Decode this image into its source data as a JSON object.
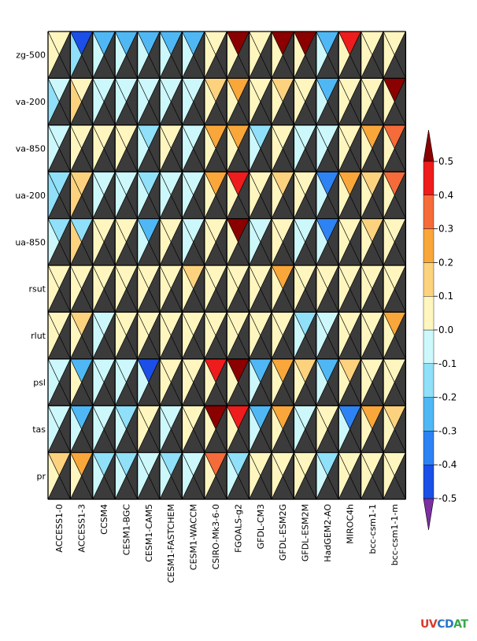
{
  "chart_data": {
    "type": "heatmap",
    "title": "",
    "xlabel": "",
    "ylabel": "",
    "rows": [
      "zg-500",
      "va-200",
      "va-850",
      "ua-200",
      "ua-850",
      "rsut",
      "rlut",
      "psl",
      "tas",
      "pr"
    ],
    "columns": [
      "ACCESS1-0",
      "ACCESS1-3",
      "CCSM4",
      "CESM1-BGC",
      "CESM1-CAM5",
      "CESM1-FASTCHEM",
      "CESM1-WACCM",
      "CSIRO-Mk3-6-0",
      "FGOALS-g2",
      "GFDL-CM3",
      "GFDL-ESM2G",
      "GFDL-ESM2M",
      "HadGEM2-AO",
      "MIROC4h",
      "bcc-csm1-1",
      "bcc-csm1-1-m"
    ],
    "triangle_order": [
      "top",
      "right",
      "bottom",
      "left"
    ],
    "missing_color": "#3b3b3b",
    "values": [
      [
        [
          0.05,
          null,
          null,
          0.05
        ],
        [
          -0.45,
          null,
          null,
          -0.15
        ],
        [
          -0.25,
          null,
          null,
          -0.05
        ],
        [
          -0.25,
          null,
          null,
          -0.05
        ],
        [
          -0.25,
          null,
          null,
          -0.05
        ],
        [
          -0.25,
          null,
          null,
          -0.05
        ],
        [
          -0.25,
          null,
          null,
          -0.05
        ],
        [
          0.05,
          null,
          null,
          0.05
        ],
        [
          0.6,
          null,
          null,
          0.05
        ],
        [
          0.05,
          null,
          null,
          0.05
        ],
        [
          0.6,
          null,
          null,
          0.05
        ],
        [
          0.6,
          null,
          null,
          0.05
        ],
        [
          -0.25,
          null,
          null,
          -0.05
        ],
        [
          0.45,
          null,
          null,
          0.05
        ],
        [
          0.05,
          null,
          null,
          0.05
        ],
        [
          0.05,
          null,
          null,
          0.05
        ]
      ],
      [
        [
          -0.05,
          null,
          null,
          -0.15
        ],
        [
          0.05,
          null,
          null,
          0.15
        ],
        [
          -0.05,
          null,
          null,
          -0.05
        ],
        [
          -0.05,
          null,
          null,
          -0.05
        ],
        [
          -0.05,
          null,
          null,
          -0.05
        ],
        [
          -0.05,
          null,
          null,
          -0.05
        ],
        [
          -0.05,
          null,
          null,
          -0.05
        ],
        [
          0.15,
          null,
          null,
          0.05
        ],
        [
          0.25,
          null,
          null,
          0.05
        ],
        [
          0.05,
          null,
          null,
          0.05
        ],
        [
          0.15,
          null,
          null,
          0.05
        ],
        [
          0.05,
          null,
          null,
          0.05
        ],
        [
          -0.25,
          null,
          null,
          -0.05
        ],
        [
          0.05,
          null,
          null,
          0.05
        ],
        [
          0.05,
          null,
          null,
          0.05
        ],
        [
          0.6,
          null,
          null,
          0.05
        ]
      ],
      [
        [
          -0.05,
          null,
          null,
          -0.05
        ],
        [
          0.05,
          null,
          null,
          0.05
        ],
        [
          0.05,
          null,
          null,
          0.05
        ],
        [
          0.05,
          null,
          null,
          0.05
        ],
        [
          -0.15,
          null,
          null,
          -0.05
        ],
        [
          0.05,
          null,
          null,
          0.05
        ],
        [
          -0.05,
          null,
          null,
          -0.05
        ],
        [
          0.25,
          null,
          null,
          0.05
        ],
        [
          0.25,
          null,
          null,
          0.05
        ],
        [
          -0.15,
          null,
          null,
          -0.05
        ],
        [
          0.05,
          null,
          null,
          0.05
        ],
        [
          -0.05,
          null,
          null,
          -0.05
        ],
        [
          -0.05,
          null,
          null,
          -0.05
        ],
        [
          0.05,
          null,
          null,
          0.05
        ],
        [
          0.25,
          null,
          null,
          0.05
        ],
        [
          0.35,
          null,
          null,
          0.05
        ]
      ],
      [
        [
          -0.15,
          null,
          null,
          -0.15
        ],
        [
          0.15,
          null,
          null,
          0.15
        ],
        [
          -0.05,
          null,
          null,
          -0.05
        ],
        [
          -0.05,
          null,
          null,
          -0.05
        ],
        [
          -0.15,
          null,
          null,
          -0.05
        ],
        [
          -0.05,
          null,
          null,
          -0.05
        ],
        [
          -0.05,
          null,
          null,
          -0.05
        ],
        [
          0.25,
          null,
          null,
          0.05
        ],
        [
          0.45,
          null,
          null,
          0.05
        ],
        [
          0.05,
          null,
          null,
          0.05
        ],
        [
          0.15,
          null,
          null,
          0.05
        ],
        [
          0.05,
          null,
          null,
          0.05
        ],
        [
          -0.35,
          null,
          null,
          -0.05
        ],
        [
          0.25,
          null,
          null,
          0.05
        ],
        [
          0.15,
          null,
          null,
          0.05
        ],
        [
          0.35,
          null,
          null,
          0.05
        ]
      ],
      [
        [
          -0.15,
          null,
          null,
          -0.05
        ],
        [
          -0.15,
          null,
          null,
          0.15
        ],
        [
          0.05,
          null,
          null,
          0.05
        ],
        [
          0.05,
          null,
          null,
          0.05
        ],
        [
          -0.25,
          null,
          null,
          -0.05
        ],
        [
          0.05,
          null,
          null,
          0.05
        ],
        [
          -0.05,
          null,
          null,
          -0.05
        ],
        [
          0.05,
          null,
          null,
          0.05
        ],
        [
          0.6,
          null,
          null,
          0.05
        ],
        [
          -0.05,
          null,
          null,
          -0.05
        ],
        [
          0.05,
          null,
          null,
          0.05
        ],
        [
          -0.05,
          null,
          null,
          -0.05
        ],
        [
          -0.35,
          null,
          null,
          -0.05
        ],
        [
          0.05,
          null,
          null,
          0.05
        ],
        [
          0.15,
          null,
          null,
          0.05
        ],
        [
          0.05,
          null,
          null,
          0.05
        ]
      ],
      [
        [
          0.05,
          null,
          null,
          0.05
        ],
        [
          0.05,
          null,
          null,
          0.05
        ],
        [
          0.05,
          null,
          null,
          0.05
        ],
        [
          0.05,
          null,
          null,
          0.05
        ],
        [
          0.05,
          null,
          null,
          0.05
        ],
        [
          0.05,
          null,
          null,
          0.05
        ],
        [
          0.15,
          null,
          null,
          0.05
        ],
        [
          0.05,
          null,
          null,
          0.05
        ],
        [
          0.05,
          null,
          null,
          0.05
        ],
        [
          0.05,
          null,
          null,
          0.05
        ],
        [
          0.25,
          null,
          null,
          0.05
        ],
        [
          0.05,
          null,
          null,
          0.05
        ],
        [
          0.05,
          null,
          null,
          0.05
        ],
        [
          0.05,
          null,
          null,
          0.05
        ],
        [
          0.05,
          null,
          null,
          0.05
        ],
        [
          0.05,
          null,
          null,
          0.05
        ]
      ],
      [
        [
          0.05,
          null,
          null,
          0.05
        ],
        [
          0.15,
          null,
          null,
          0.05
        ],
        [
          -0.05,
          null,
          null,
          -0.05
        ],
        [
          0.05,
          null,
          null,
          0.05
        ],
        [
          0.05,
          null,
          null,
          0.05
        ],
        [
          0.05,
          null,
          null,
          0.05
        ],
        [
          0.05,
          null,
          null,
          0.05
        ],
        [
          0.05,
          null,
          null,
          0.05
        ],
        [
          0.05,
          null,
          null,
          0.05
        ],
        [
          0.05,
          null,
          null,
          0.05
        ],
        [
          0.05,
          null,
          null,
          0.05
        ],
        [
          -0.15,
          null,
          null,
          -0.05
        ],
        [
          -0.05,
          null,
          null,
          -0.05
        ],
        [
          0.05,
          null,
          null,
          0.05
        ],
        [
          0.05,
          null,
          null,
          0.05
        ],
        [
          0.25,
          null,
          null,
          0.05
        ]
      ],
      [
        [
          -0.05,
          null,
          null,
          -0.05
        ],
        [
          -0.25,
          null,
          null,
          0.05
        ],
        [
          -0.05,
          null,
          null,
          -0.05
        ],
        [
          -0.05,
          null,
          null,
          -0.05
        ],
        [
          -0.45,
          null,
          null,
          -0.05
        ],
        [
          0.05,
          null,
          null,
          0.05
        ],
        [
          0.05,
          null,
          null,
          0.05
        ],
        [
          0.45,
          null,
          null,
          0.05
        ],
        [
          0.6,
          null,
          null,
          0.05
        ],
        [
          -0.25,
          null,
          null,
          -0.05
        ],
        [
          0.25,
          null,
          null,
          0.05
        ],
        [
          0.15,
          null,
          null,
          0.05
        ],
        [
          -0.25,
          null,
          null,
          -0.05
        ],
        [
          0.15,
          null,
          null,
          0.05
        ],
        [
          0.05,
          null,
          null,
          0.05
        ],
        [
          0.05,
          null,
          null,
          0.05
        ]
      ],
      [
        [
          -0.05,
          null,
          null,
          -0.05
        ],
        [
          -0.25,
          null,
          null,
          -0.05
        ],
        [
          -0.05,
          null,
          null,
          -0.05
        ],
        [
          -0.15,
          null,
          null,
          -0.05
        ],
        [
          0.05,
          null,
          null,
          0.05
        ],
        [
          -0.05,
          null,
          null,
          -0.05
        ],
        [
          0.05,
          null,
          null,
          0.05
        ],
        [
          0.6,
          null,
          null,
          0.05
        ],
        [
          0.45,
          null,
          null,
          0.05
        ],
        [
          -0.25,
          null,
          null,
          -0.05
        ],
        [
          0.25,
          null,
          null,
          0.05
        ],
        [
          -0.05,
          null,
          null,
          -0.05
        ],
        [
          0.05,
          null,
          null,
          0.05
        ],
        [
          -0.35,
          null,
          null,
          -0.05
        ],
        [
          0.25,
          null,
          null,
          0.05
        ],
        [
          0.15,
          null,
          null,
          0.05
        ]
      ],
      [
        [
          0.15,
          null,
          null,
          0.05
        ],
        [
          0.25,
          null,
          null,
          0.05
        ],
        [
          -0.15,
          null,
          null,
          -0.05
        ],
        [
          -0.15,
          null,
          null,
          -0.05
        ],
        [
          -0.05,
          null,
          null,
          -0.05
        ],
        [
          -0.15,
          null,
          null,
          -0.05
        ],
        [
          -0.05,
          null,
          null,
          -0.05
        ],
        [
          0.35,
          null,
          null,
          0.05
        ],
        [
          -0.15,
          null,
          null,
          -0.05
        ],
        [
          0.05,
          null,
          null,
          0.05
        ],
        [
          0.05,
          null,
          null,
          0.05
        ],
        [
          0.05,
          null,
          null,
          0.05
        ],
        [
          -0.15,
          null,
          null,
          -0.05
        ],
        [
          0.05,
          null,
          null,
          0.05
        ],
        [
          0.05,
          null,
          null,
          0.05
        ],
        [
          0.05,
          null,
          null,
          0.05
        ]
      ]
    ],
    "colorbar": {
      "min": -0.5,
      "max": 0.5,
      "step": 0.1,
      "ticks": [
        "-0.5",
        "-0.4",
        "-0.3",
        "-0.2",
        "-0.1",
        "0.0",
        "0.1",
        "0.2",
        "0.3",
        "0.4",
        "0.5"
      ],
      "colors": [
        "#1b4fe8",
        "#2e83f4",
        "#4fb8f4",
        "#8fe0f8",
        "#ccf8fb",
        "#fff6bf",
        "#fdd27e",
        "#f9a73a",
        "#f56b3a",
        "#ee1c1c"
      ],
      "under_color": "#7b2fa0",
      "over_color": "#8b0000",
      "extend": "both"
    }
  },
  "logo": {
    "part1": "UV",
    "part2": "CD",
    "part3": "AT"
  }
}
